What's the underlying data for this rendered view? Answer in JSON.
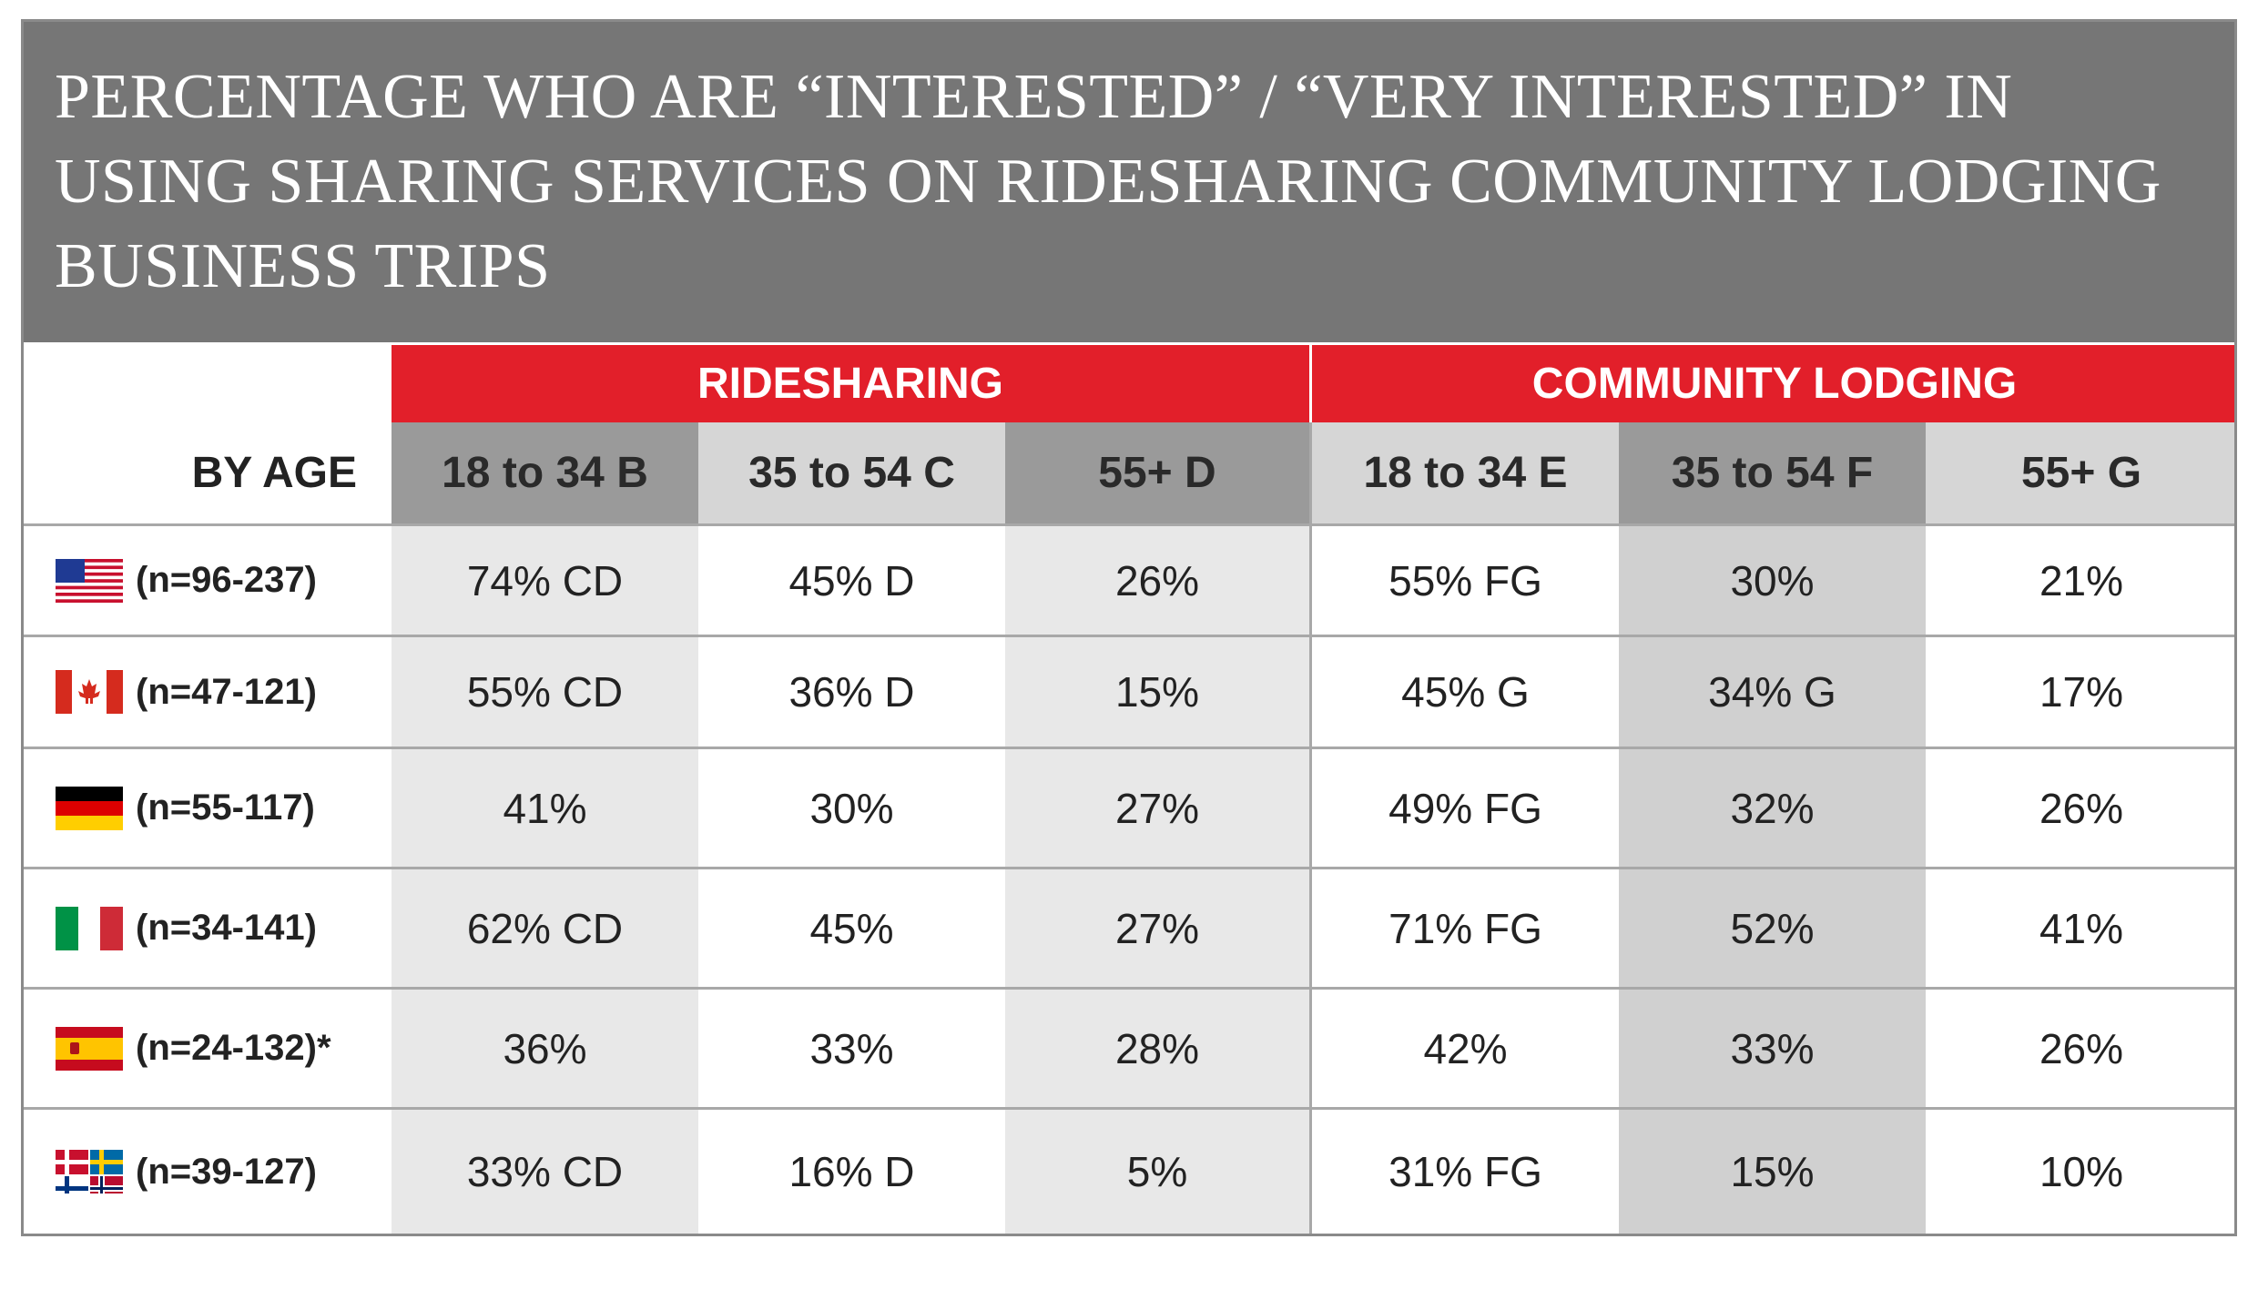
{
  "title": "PERCENTAGE WHO ARE “INTERESTED” / “VERY INTERESTED” IN USING SHARING SERVICES ON RIDESHARING COMMUNITY LODGING BUSINESS TRIPS",
  "row_header": "BY AGE",
  "groups": [
    "RIDESHARING",
    "COMMUNITY LODGING"
  ],
  "columns": [
    "18 to 34 B",
    "35 to 54 C",
    "55+ D",
    "18 to 34 E",
    "35 to 54 F",
    "55+ G"
  ],
  "rows": [
    {
      "flag": "usa-flag-icon",
      "label": "(n=96-237)",
      "cells": [
        "74% CD",
        "45% D",
        "26%",
        "55% FG",
        "30%",
        "21%"
      ]
    },
    {
      "flag": "canada-flag-icon",
      "label": "(n=47-121)",
      "cells": [
        "55% CD",
        "36% D",
        "15%",
        "45% G",
        "34% G",
        "17%"
      ]
    },
    {
      "flag": "germany-flag-icon",
      "label": "(n=55-117)",
      "cells": [
        "41%",
        "30%",
        "27%",
        "49% FG",
        "32%",
        "26%"
      ]
    },
    {
      "flag": "italy-flag-icon",
      "label": "(n=34-141)",
      "cells": [
        "62% CD",
        "45%",
        "27%",
        "71% FG",
        "52%",
        "41%"
      ]
    },
    {
      "flag": "spain-flag-icon",
      "label": "(n=24-132)*",
      "cells": [
        "36%",
        "33%",
        "28%",
        "42%",
        "33%",
        "26%"
      ]
    },
    {
      "flag": "nordics-flags-icon",
      "label": "(n=39-127)",
      "cells": [
        "33% CD",
        "16% D",
        "5%",
        "31% FG",
        "15%",
        "10%"
      ]
    }
  ],
  "colors": {
    "title_bar": "#767676",
    "group_header": "#e21f2a",
    "header_dark": "#9a9a9a",
    "header_light": "#d6d6d6"
  },
  "chart_data": {
    "type": "table",
    "title": "PERCENTAGE WHO ARE “INTERESTED” / “VERY INTERESTED” IN USING SHARING SERVICES ON RIDESHARING COMMUNITY LODGING BUSINESS TRIPS",
    "groups": [
      "RIDESHARING",
      "COMMUNITY LODGING"
    ],
    "columns": [
      "18 to 34 B",
      "35 to 54 C",
      "55+ D",
      "18 to 34 E",
      "35 to 54 F",
      "55+ G"
    ],
    "rows": [
      "(n=96-237)",
      "(n=47-121)",
      "(n=55-117)",
      "(n=34-141)",
      "(n=24-132)*",
      "(n=39-127)"
    ],
    "values": [
      [
        74,
        45,
        26,
        55,
        30,
        21
      ],
      [
        55,
        36,
        15,
        45,
        34,
        17
      ],
      [
        41,
        30,
        27,
        49,
        32,
        26
      ],
      [
        62,
        45,
        27,
        71,
        52,
        41
      ],
      [
        36,
        33,
        28,
        42,
        33,
        26
      ],
      [
        33,
        16,
        5,
        31,
        15,
        10
      ]
    ]
  }
}
